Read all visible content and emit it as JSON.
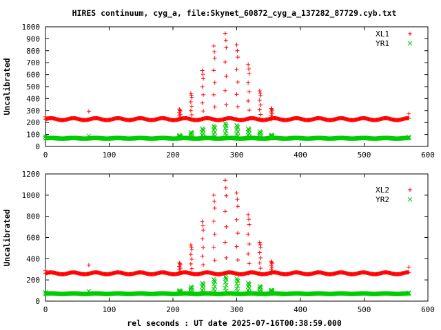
{
  "title": "HIRES continuum, cyg_a, file:Skynet_60872_cyg_a_137282_87729.cyb.txt",
  "xlabel": "rel seconds : UT date 2025-07-16T00:38:59.000",
  "chart_data": [
    {
      "type": "scatter",
      "ylabel": "Uncalibrated",
      "xlim": [
        0,
        600
      ],
      "ylim": [
        0,
        1000
      ],
      "xticks": [
        0,
        100,
        200,
        300,
        400,
        500,
        600
      ],
      "yticks": [
        0,
        100,
        200,
        300,
        400,
        500,
        600,
        700,
        800,
        900,
        1000
      ],
      "legend_position": "top-right",
      "grid": false,
      "series": [
        {
          "name": "XL1",
          "marker": "+",
          "color": "#ff0000",
          "baseline": 228,
          "ripple_amplitude": 8,
          "ripple_period_s": 35,
          "outliers": [
            [
              0,
              248
            ],
            [
              68,
              292
            ],
            [
              570,
              272
            ]
          ],
          "peaks": [
            [
              210,
              310
            ],
            [
              228,
              445
            ],
            [
              246,
              635
            ],
            [
              264,
              840
            ],
            [
              282,
              945
            ],
            [
              300,
              850
            ],
            [
              318,
              685
            ],
            [
              336,
              465
            ],
            [
              354,
              318
            ]
          ]
        },
        {
          "name": "YR1",
          "marker": "x",
          "color": "#00cc00",
          "baseline": 68,
          "ripple_amplitude": 3,
          "ripple_period_s": 35,
          "outliers": [
            [
              0,
              82
            ],
            [
              68,
              88
            ],
            [
              570,
              80
            ]
          ],
          "peaks": [
            [
              210,
              92
            ],
            [
              228,
              118
            ],
            [
              246,
              148
            ],
            [
              264,
              170
            ],
            [
              282,
              192
            ],
            [
              300,
              176
            ],
            [
              318,
              148
            ],
            [
              336,
              124
            ],
            [
              354,
              96
            ]
          ]
        }
      ]
    },
    {
      "type": "scatter",
      "ylabel": "Uncalibrated",
      "xlim": [
        0,
        600
      ],
      "ylim": [
        0,
        1200
      ],
      "xticks": [
        0,
        100,
        200,
        300,
        400,
        500,
        600
      ],
      "yticks": [
        0,
        200,
        400,
        600,
        800,
        1000,
        1200
      ],
      "legend_position": "top-right",
      "grid": false,
      "series": [
        {
          "name": "XL2",
          "marker": "+",
          "color": "#ff0000",
          "baseline": 262,
          "ripple_amplitude": 9,
          "ripple_period_s": 35,
          "outliers": [
            [
              0,
              290
            ],
            [
              68,
              340
            ],
            [
              570,
              320
            ]
          ],
          "peaks": [
            [
              210,
              360
            ],
            [
              228,
              530
            ],
            [
              246,
              750
            ],
            [
              264,
              1000
            ],
            [
              282,
              1140
            ],
            [
              300,
              1020
            ],
            [
              318,
              815
            ],
            [
              336,
              555
            ],
            [
              354,
              375
            ]
          ]
        },
        {
          "name": "YR2",
          "marker": "x",
          "color": "#00cc00",
          "baseline": 70,
          "ripple_amplitude": 3,
          "ripple_period_s": 35,
          "outliers": [
            [
              0,
              82
            ],
            [
              68,
              95
            ],
            [
              570,
              80
            ]
          ],
          "peaks": [
            [
              210,
              100
            ],
            [
              228,
              135
            ],
            [
              246,
              170
            ],
            [
              264,
              205
            ],
            [
              282,
              230
            ],
            [
              300,
              212
            ],
            [
              318,
              172
            ],
            [
              336,
              140
            ],
            [
              354,
              105
            ]
          ]
        }
      ]
    }
  ]
}
